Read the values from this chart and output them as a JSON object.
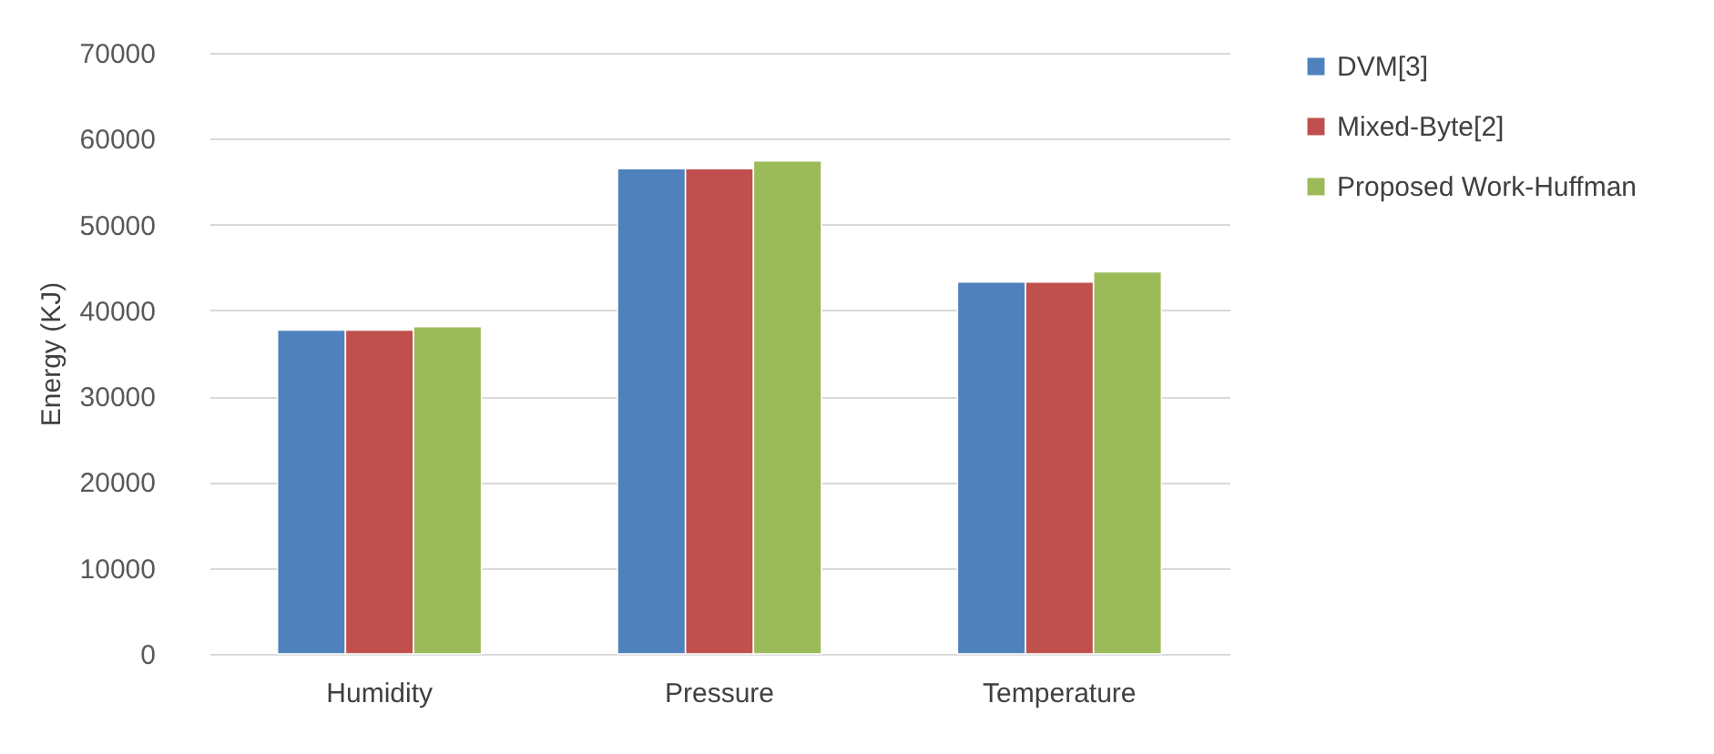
{
  "chart_data": {
    "type": "bar",
    "ylabel": "Energy (KJ)",
    "categories": [
      "Humidity",
      "Pressure",
      "Temperature"
    ],
    "series": [
      {
        "name": "DVM[3]",
        "color": "#4f81bd",
        "values": [
          37700,
          56500,
          43300
        ]
      },
      {
        "name": "Mixed-Byte[2]",
        "color": "#c0504d",
        "values": [
          37700,
          56500,
          43300
        ]
      },
      {
        "name": "Proposed Work-Huffman",
        "color": "#9bbb59",
        "values": [
          38100,
          57400,
          44500
        ]
      }
    ],
    "ylim": [
      0,
      70000
    ],
    "yticks": [
      0,
      10000,
      20000,
      30000,
      40000,
      50000,
      60000,
      70000
    ],
    "grid": "y",
    "legend": "right"
  }
}
